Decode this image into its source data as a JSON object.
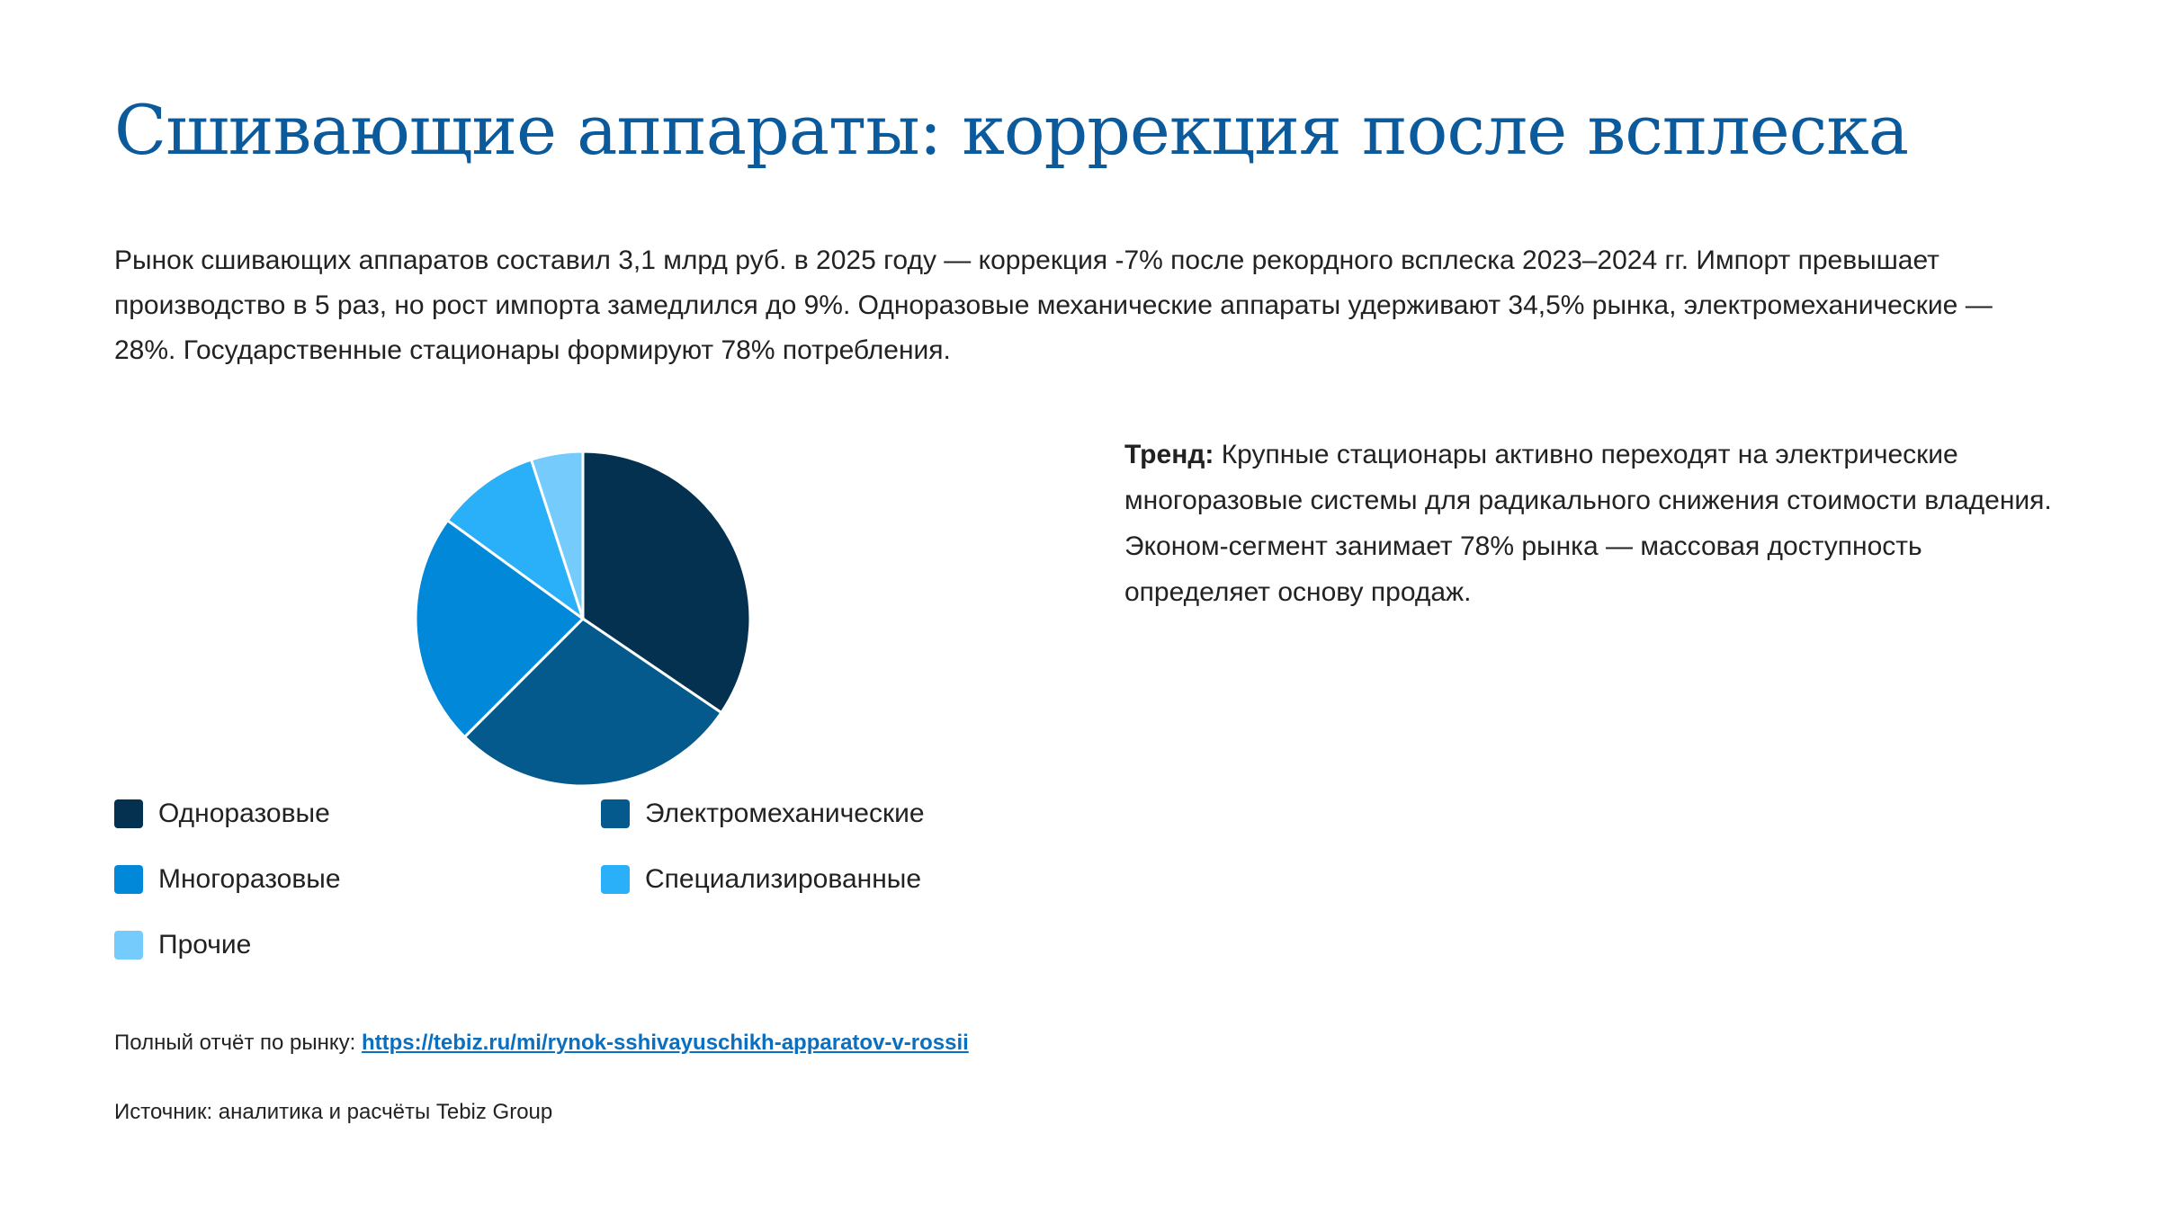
{
  "title": "Сшивающие аппараты: коррекция после всплеска",
  "intro": "Рынок сшивающих аппаратов составил 3,1 млрд руб. в 2025 году — коррекция -7% после рекордного всплеска 2023–2024 гг. Импорт превышает производство в 5 раз, но рост импорта замедлился до 9%. Одноразовые механические аппараты удерживают 34,5% рынка, электромеханические — 28%. Государственные стационары формируют 78% потребления.",
  "trend": {
    "label": "Тренд:",
    "text": " Крупные стационары активно переходят на электрические многоразовые системы для радикального снижения стоимости владения. Эконом-сегмент занимает 78% рынка — массовая доступность определяет основу продаж."
  },
  "chart_data": {
    "type": "pie",
    "categories": [
      "Одноразовые",
      "Электромеханические",
      "Многоразовые",
      "Специализированные",
      "Прочие"
    ],
    "values": [
      34.5,
      28,
      22.5,
      10,
      5
    ],
    "colors": [
      "#03314f",
      "#045a8d",
      "#0288d8",
      "#29b0f8",
      "#74cbfc"
    ],
    "legend": "bottom",
    "start": "top",
    "direction": "clockwise"
  },
  "footer": {
    "report_label": "Полный отчёт по рынку: ",
    "report_link": "https://tebiz.ru/mi/rynok-sshivayuschikh-apparatov-v-rossii",
    "source": "Источник: аналитика и расчёты Tebiz Group"
  }
}
